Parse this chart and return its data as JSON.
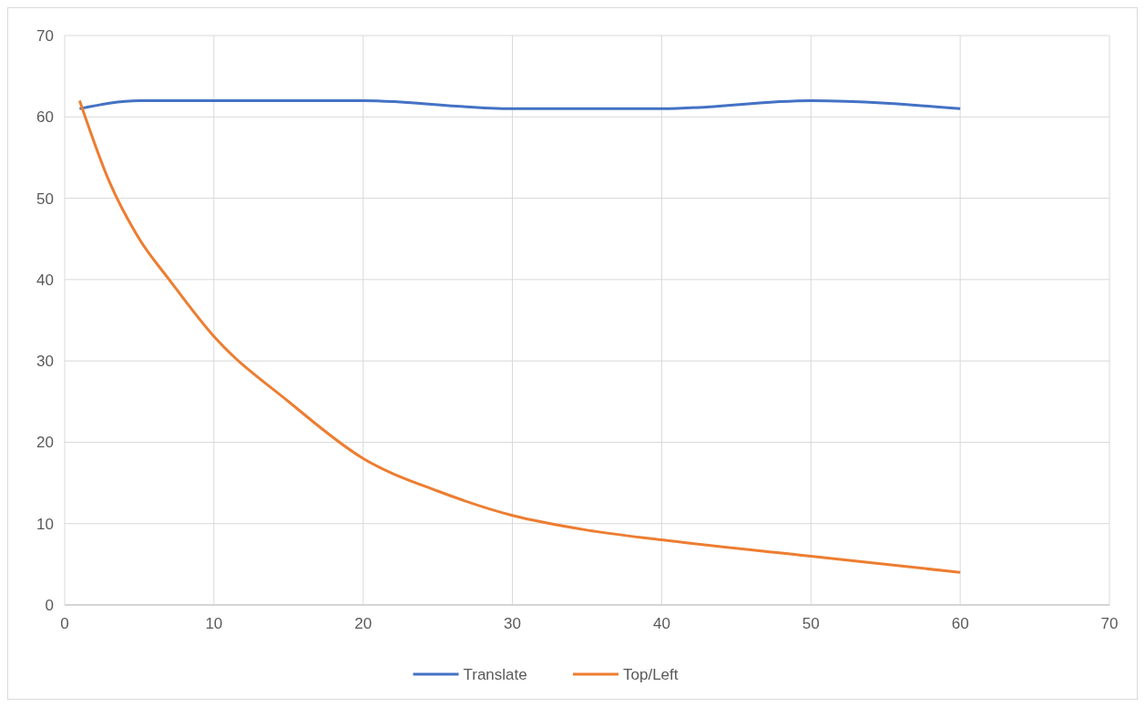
{
  "chart_data": {
    "type": "line",
    "x": [
      1,
      5,
      10,
      20,
      30,
      40,
      50,
      60
    ],
    "series": [
      {
        "name": "Translate",
        "color": "#4472c4",
        "values": [
          61,
          62,
          62,
          62,
          61,
          61,
          62,
          61
        ]
      },
      {
        "name": "Top/Left",
        "color": "#ed7d31",
        "x": [
          1,
          3,
          5,
          7,
          10,
          15,
          20,
          25,
          30,
          35,
          40,
          50,
          60
        ],
        "values": [
          62,
          52,
          45,
          40,
          33,
          25,
          18,
          14,
          11,
          9.2,
          8,
          6,
          4
        ]
      }
    ],
    "xlim": [
      0,
      70
    ],
    "xticks": [
      0,
      10,
      20,
      30,
      40,
      50,
      60,
      70
    ],
    "ylim": [
      0,
      70
    ],
    "yticks": [
      0,
      10,
      20,
      30,
      40,
      50,
      60,
      70
    ],
    "grid": true,
    "legend": "bottom",
    "marker": "none",
    "line_style": "solid"
  }
}
